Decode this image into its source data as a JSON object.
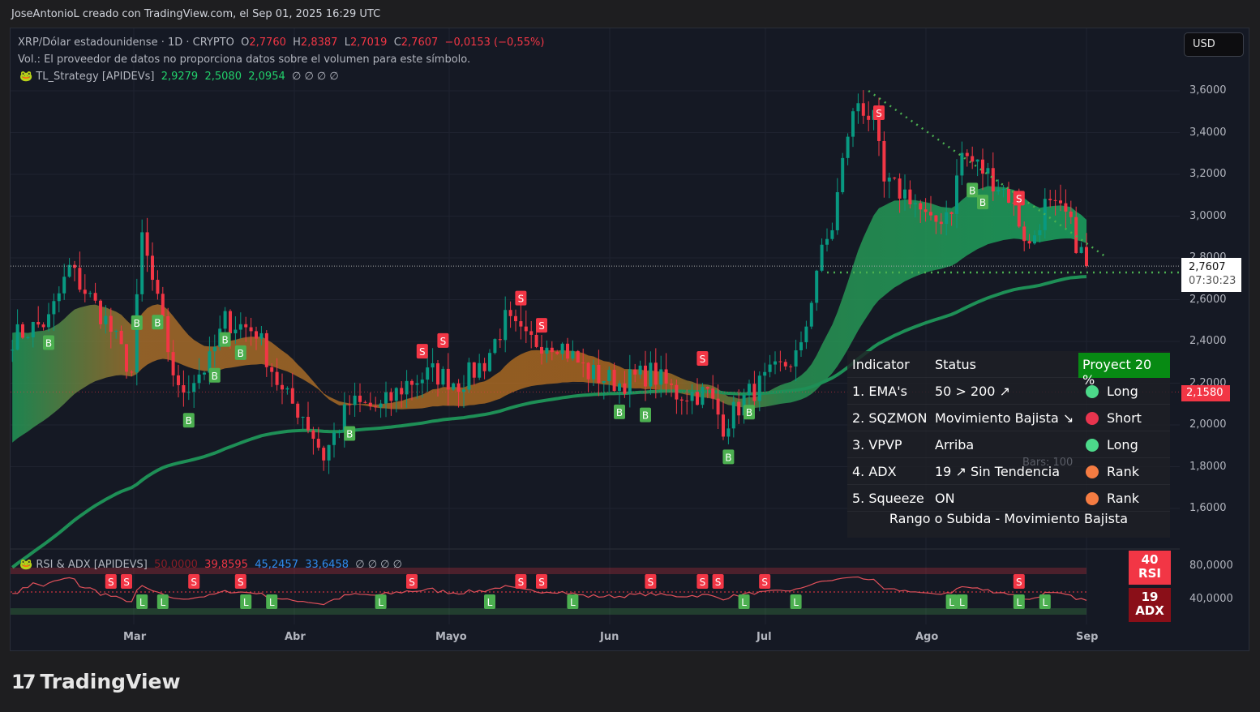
{
  "header": {
    "attribution": "JoseAntonioL creado con TradingView.com, el Sep 01, 2025 16:29 UTC"
  },
  "symbol": {
    "name": "XRP/Dólar estadounidense · 1D · CRYPTO",
    "open_label": "O",
    "open": "2,7760",
    "high_label": "H",
    "high": "2,8387",
    "low_label": "L",
    "low": "2,7019",
    "close_label": "C",
    "close": "2,7607",
    "change": "−0,0153 (−0,55%)"
  },
  "volume_note": "Vol.: El proveedor de datos no proporciona datos sobre el volumen para este símbolo.",
  "strategy": {
    "name": "TL_Strategy [APIDEVs]",
    "v1": "2,9279",
    "v2": "2,5080",
    "v3": "2,0954",
    "nulls": "∅  ∅  ∅  ∅"
  },
  "currency": "USD",
  "price_axis": [
    "3,6000",
    "3,4000",
    "3,2000",
    "3,0000",
    "2,8000",
    "2,6000",
    "2,4000",
    "2,2000",
    "2,0000",
    "1,8000",
    "1,6000"
  ],
  "last_price": {
    "value": "2,7607",
    "countdown": "07:30:23"
  },
  "marker_price": "2,1580",
  "months": [
    "Mar",
    "Abr",
    "Mayo",
    "Jun",
    "Jul",
    "Ago",
    "Sep"
  ],
  "table": {
    "headers": [
      "Indicator",
      "Status",
      "Proyect 20 %"
    ],
    "rows": [
      {
        "indicator": "1. EMA's",
        "status": "50 > 200 ↗",
        "signal": "Long",
        "color": "#4cd98a"
      },
      {
        "indicator": "2. SQZMON",
        "status": "Movimiento Bajista ↘",
        "signal": "Short",
        "color": "#e8344e"
      },
      {
        "indicator": "3. VPVP",
        "status": "Arriba",
        "signal": "Long",
        "color": "#4cd98a"
      },
      {
        "indicator": "4. ADX",
        "status": "19 ↗ Sin Tendencia",
        "signal": "Rank",
        "color": "#f57c42"
      },
      {
        "indicator": "5. Squeeze",
        "status": "ON",
        "signal": "Rank",
        "color": "#f57c42"
      }
    ],
    "footer": "Rango o Subida - Movimiento Bajista",
    "bars_note": "Bars: 100"
  },
  "rsi_panel": {
    "name": "RSI & ADX [APIDEVS]",
    "v1": "50,0000",
    "v2": "39,8595",
    "v3": "45,2457",
    "v4": "33,6458",
    "nulls": "∅  ∅  ∅  ∅",
    "axis": [
      "80,0000",
      "40,0000"
    ],
    "rsi_value": "40",
    "rsi_label": "RSI",
    "adx_value": "19",
    "adx_label": "ADX"
  },
  "colors": {
    "up": "#089981",
    "down": "#f23645",
    "signal_buy": "#4caf50",
    "signal_sell": "#f23645"
  },
  "chart_data": {
    "type": "candlestick",
    "ylim": [
      1.45,
      3.7
    ],
    "closes": [
      [
        "2025-02-06",
        2.42
      ],
      [
        "2025-02-13",
        2.5
      ],
      [
        "2025-02-17",
        2.75
      ],
      [
        "2025-02-24",
        2.5
      ],
      [
        "2025-03-01",
        2.25
      ],
      [
        "2025-03-03",
        2.9
      ],
      [
        "2025-03-10",
        2.15
      ],
      [
        "2025-03-16",
        2.3
      ],
      [
        "2025-03-19",
        2.5
      ],
      [
        "2025-03-25",
        2.45
      ],
      [
        "2025-03-30",
        2.15
      ],
      [
        "2025-04-03",
        2.05
      ],
      [
        "2025-04-07",
        1.85
      ],
      [
        "2025-04-12",
        2.1
      ],
      [
        "2025-04-18",
        2.08
      ],
      [
        "2025-04-23",
        2.2
      ],
      [
        "2025-04-28",
        2.25
      ],
      [
        "2025-05-03",
        2.2
      ],
      [
        "2025-05-08",
        2.3
      ],
      [
        "2025-05-12",
        2.5
      ],
      [
        "2025-05-16",
        2.4
      ],
      [
        "2025-05-22",
        2.4
      ],
      [
        "2025-05-28",
        2.25
      ],
      [
        "2025-06-03",
        2.2
      ],
      [
        "2025-06-09",
        2.25
      ],
      [
        "2025-06-14",
        2.15
      ],
      [
        "2025-06-20",
        2.15
      ],
      [
        "2025-06-23",
        2.0
      ],
      [
        "2025-06-28",
        2.15
      ],
      [
        "2025-07-03",
        2.25
      ],
      [
        "2025-07-08",
        2.35
      ],
      [
        "2025-07-11",
        2.75
      ],
      [
        "2025-07-14",
        2.95
      ],
      [
        "2025-07-17",
        3.4
      ],
      [
        "2025-07-19",
        3.55
      ],
      [
        "2025-07-22",
        3.45
      ],
      [
        "2025-07-24",
        3.15
      ],
      [
        "2025-07-29",
        3.1
      ],
      [
        "2025-08-02",
        2.95
      ],
      [
        "2025-08-06",
        3.05
      ],
      [
        "2025-08-08",
        3.3
      ],
      [
        "2025-08-13",
        3.2
      ],
      [
        "2025-08-17",
        3.1
      ],
      [
        "2025-08-21",
        2.85
      ],
      [
        "2025-08-24",
        3.05
      ],
      [
        "2025-08-28",
        3.0
      ],
      [
        "2025-09-01",
        2.7607
      ]
    ],
    "buy_signals": [
      "2025-02-13",
      "2025-03-02",
      "2025-03-06",
      "2025-03-12",
      "2025-03-17",
      "2025-03-19",
      "2025-03-22",
      "2025-04-12",
      "2025-06-03",
      "2025-06-08",
      "2025-06-24",
      "2025-06-28",
      "2025-08-10",
      "2025-08-12"
    ],
    "sell_signals": [
      "2025-04-26",
      "2025-04-30",
      "2025-05-15",
      "2025-05-19",
      "2025-06-19",
      "2025-07-23",
      "2025-08-19"
    ],
    "rsi_sell_signals": [
      "2025-02-25",
      "2025-02-28",
      "2025-03-13",
      "2025-03-22",
      "2025-04-24",
      "2025-05-15",
      "2025-05-19",
      "2025-06-09",
      "2025-06-19",
      "2025-06-22",
      "2025-07-01",
      "2025-08-19"
    ],
    "rsi_long_signals": [
      "2025-03-03",
      "2025-03-07",
      "2025-03-23",
      "2025-03-28",
      "2025-04-18",
      "2025-05-09",
      "2025-05-25",
      "2025-06-27",
      "2025-07-07",
      "2025-08-06",
      "2025-08-08",
      "2025-08-19",
      "2025-08-24"
    ],
    "trendline": [
      [
        "2025-07-21",
        3.6
      ],
      [
        "2025-09-05",
        2.8
      ]
    ],
    "support_level": 2.73
  }
}
